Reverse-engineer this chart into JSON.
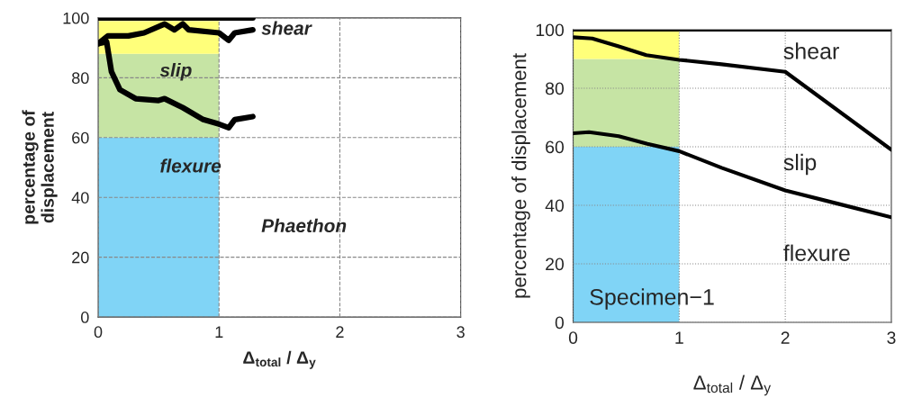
{
  "chart_data": [
    {
      "type": "line",
      "xlabel": "Δ$_{total}$ / Δ$_{y}$",
      "ylabel": "percentage of\ndisplacement",
      "xlim": [
        0,
        3
      ],
      "ylim": [
        0,
        100
      ],
      "xticks": [
        0,
        1,
        2,
        3
      ],
      "yticks": [
        0,
        20,
        40,
        60,
        80,
        100
      ],
      "grid": true,
      "line_style": "solid",
      "stacked": true,
      "series": [
        {
          "type": "area",
          "color": "#80d4f6",
          "x": [
            0,
            1
          ],
          "values": [
            60,
            60
          ]
        },
        {
          "type": "area",
          "color": "#c6e4a4",
          "x": [
            0,
            1
          ],
          "values": [
            28,
            28
          ]
        },
        {
          "type": "area",
          "color": "#ffff7a",
          "x": [
            0,
            1
          ],
          "values": [
            11,
            11
          ]
        },
        {
          "color": "#000000",
          "x": [
            0,
            1.28
          ],
          "values": [
            100,
            100
          ]
        },
        {
          "color": "#000000",
          "x": [
            0,
            0.08,
            0.25,
            0.38,
            0.55,
            0.63,
            0.7,
            0.75,
            1.0,
            1.08,
            1.13,
            1.28
          ],
          "values": [
            91.4,
            94,
            94,
            95,
            98,
            96,
            98,
            96,
            95,
            92.5,
            95,
            96
          ]
        },
        {
          "color": "#000000",
          "x": [
            0,
            0.07,
            0.11,
            0.18,
            0.31,
            0.5,
            0.55,
            0.7,
            0.87,
            1.0,
            1.08,
            1.13,
            1.28
          ],
          "values": [
            91.4,
            92,
            82,
            76,
            73,
            72.4,
            73,
            70,
            66,
            64.5,
            63.3,
            66,
            67
          ]
        }
      ],
      "annotations": [
        "shear",
        "slip",
        "flexure",
        "Phaethon"
      ]
    },
    {
      "type": "line",
      "xlabel": "Δ$_{total}$ / Δ$_{y}$",
      "ylabel": "percentage of displacement",
      "xlim": [
        0,
        3
      ],
      "ylim": [
        0,
        100
      ],
      "xticks": [
        0,
        1,
        2,
        3
      ],
      "yticks": [
        0,
        20,
        40,
        60,
        80,
        100
      ],
      "grid": true,
      "line_style": "solid",
      "stacked": true,
      "series": [
        {
          "type": "area",
          "color": "#80d4f6",
          "x": [
            0,
            1
          ],
          "values": [
            60,
            60
          ]
        },
        {
          "type": "area",
          "color": "#c6e4a4",
          "x": [
            0,
            1
          ],
          "values": [
            30,
            30
          ]
        },
        {
          "type": "area",
          "color": "#ffff7a",
          "x": [
            0,
            1
          ],
          "values": [
            10,
            10
          ]
        },
        {
          "color": "#000000",
          "x": [
            0,
            3
          ],
          "values": [
            100,
            100
          ]
        },
        {
          "color": "#000000",
          "x": [
            0,
            0.18,
            0.43,
            0.69,
            1.0,
            1.4,
            2.0,
            3.0
          ],
          "values": [
            97.4,
            97,
            94.3,
            91.3,
            89.7,
            88.2,
            85.6,
            59
          ]
        },
        {
          "color": "#000000",
          "x": [
            0,
            0.15,
            0.43,
            0.7,
            1.0,
            1.4,
            2.0,
            2.5,
            3.0
          ],
          "values": [
            64.6,
            65,
            63.6,
            61,
            58.5,
            52.8,
            45.1,
            40.5,
            35.9
          ]
        }
      ],
      "annotations": [
        "shear",
        "slip",
        "flexure",
        "Specimen−1"
      ]
    }
  ]
}
